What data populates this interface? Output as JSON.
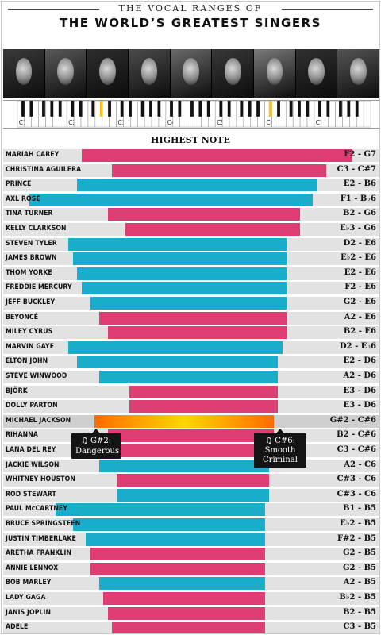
{
  "header": {
    "kicker": "THE VOCAL RANGES OF",
    "title": "THE WORLD’S GREATEST SINGERS",
    "section_label": "HIGHEST NOTE"
  },
  "colors": {
    "pink": "#de3d74",
    "teal": "#19adcb",
    "gold_start": "#ff6a00",
    "gold_mid": "#ffd700",
    "highlight_band": "#cfcfcf"
  },
  "keyboard": {
    "octave_labels": [
      "C1",
      "C2",
      "C3",
      "C4",
      "C5",
      "C6",
      "C7"
    ]
  },
  "tooltips": [
    {
      "icon": "♫",
      "note": "G#2:",
      "song": "Dangerous"
    },
    {
      "icon": "♫",
      "note": "C#6:",
      "song": "Smooth Criminal"
    }
  ],
  "chart_data": {
    "type": "bar",
    "title": "THE WORLD’S GREATEST SINGERS",
    "subtitle": "THE VOCAL RANGES OF",
    "xlabel": "HIGHEST NOTE",
    "x_axis_ticks": [
      "C1",
      "C2",
      "C3",
      "C4",
      "C5",
      "C6",
      "C7"
    ],
    "highlighted": "MICHAEL JACKSON",
    "series": [
      {
        "singer": "MARIAH CAREY",
        "range": "F2 - G7",
        "low": "F2",
        "high": "G7",
        "color": "pink"
      },
      {
        "singer": "CHRISTINA AGUILERA",
        "range": "C3 - C#7",
        "low": "C3",
        "high": "C#7",
        "color": "pink"
      },
      {
        "singer": "PRINCE",
        "range": "E2 - B6",
        "low": "E2",
        "high": "B6",
        "color": "teal"
      },
      {
        "singer": "AXL ROSE",
        "range": "F1 - B♭6",
        "low": "F1",
        "high": "B♭6",
        "color": "teal"
      },
      {
        "singer": "TINA TURNER",
        "range": "B2 - G6",
        "low": "B2",
        "high": "G6",
        "color": "pink"
      },
      {
        "singer": "KELLY CLARKSON",
        "range": "E♭3 - G6",
        "low": "E♭3",
        "high": "G6",
        "color": "pink"
      },
      {
        "singer": "STEVEN TYLER",
        "range": "D2 - E6",
        "low": "D2",
        "high": "E6",
        "color": "teal"
      },
      {
        "singer": "JAMES BROWN",
        "range": "E♭2 - E6",
        "low": "E♭2",
        "high": "E6",
        "color": "teal"
      },
      {
        "singer": "THOM YORKE",
        "range": "E2 - E6",
        "low": "E2",
        "high": "E6",
        "color": "teal"
      },
      {
        "singer": "FREDDIE MERCURY",
        "range": "F2 - E6",
        "low": "F2",
        "high": "E6",
        "color": "teal"
      },
      {
        "singer": "JEFF BUCKLEY",
        "range": "G2 - E6",
        "low": "G2",
        "high": "E6",
        "color": "teal"
      },
      {
        "singer": "BEYONCÉ",
        "range": "A2 - E6",
        "low": "A2",
        "high": "E6",
        "color": "pink"
      },
      {
        "singer": "MILEY CYRUS",
        "range": "B2 - E6",
        "low": "B2",
        "high": "E6",
        "color": "pink"
      },
      {
        "singer": "MARVIN GAYE",
        "range": "D2 - E♭6",
        "low": "D2",
        "high": "E♭6",
        "color": "teal"
      },
      {
        "singer": "ELTON JOHN",
        "range": "E2 - D6",
        "low": "E2",
        "high": "D6",
        "color": "teal"
      },
      {
        "singer": "STEVE WINWOOD",
        "range": "A2 - D6",
        "low": "A2",
        "high": "D6",
        "color": "teal"
      },
      {
        "singer": "BJÖRK",
        "range": "E3 - D6",
        "low": "E3",
        "high": "D6",
        "color": "pink"
      },
      {
        "singer": "DOLLY PARTON",
        "range": "E3 - D6",
        "low": "E3",
        "high": "D6",
        "color": "pink"
      },
      {
        "singer": "MICHAEL JACKSON",
        "range": "G#2 - C#6",
        "low": "G#2",
        "high": "C#6",
        "color": "gold"
      },
      {
        "singer": "RIHANNA",
        "range": "B2 - C#6",
        "low": "B2",
        "high": "C#6",
        "color": "pink"
      },
      {
        "singer": "LANA DEL REY",
        "range": "C3 - C#6",
        "low": "C3",
        "high": "C#6",
        "color": "pink"
      },
      {
        "singer": "JACKIE WILSON",
        "range": "A2 - C6",
        "low": "A2",
        "high": "C6",
        "color": "teal"
      },
      {
        "singer": "WHITNEY HOUSTON",
        "range": "C#3 - C6",
        "low": "C#3",
        "high": "C6",
        "color": "pink"
      },
      {
        "singer": "ROD STEWART",
        "range": "C#3 - C6",
        "low": "C#3",
        "high": "C6",
        "color": "teal"
      },
      {
        "singer": "PAUL McCARTNEY",
        "range": "B1 - B5",
        "low": "B1",
        "high": "B5",
        "color": "teal"
      },
      {
        "singer": "BRUCE SPRINGSTEEN",
        "range": "E♭2 - B5",
        "low": "E♭2",
        "high": "B5",
        "color": "teal"
      },
      {
        "singer": "JUSTIN TIMBERLAKE",
        "range": "F#2 - B5",
        "low": "F#2",
        "high": "B5",
        "color": "teal"
      },
      {
        "singer": "ARETHA FRANKLIN",
        "range": "G2 - B5",
        "low": "G2",
        "high": "B5",
        "color": "pink"
      },
      {
        "singer": "ANNIE LENNOX",
        "range": "G2 - B5",
        "low": "G2",
        "high": "B5",
        "color": "pink"
      },
      {
        "singer": "BOB MARLEY",
        "range": "A2 - B5",
        "low": "A2",
        "high": "B5",
        "color": "teal"
      },
      {
        "singer": "LADY GAGA",
        "range": "B♭2 - B5",
        "low": "B♭2",
        "high": "B5",
        "color": "pink"
      },
      {
        "singer": "JANIS JOPLIN",
        "range": "B2 - B5",
        "low": "B2",
        "high": "B5",
        "color": "pink"
      },
      {
        "singer": "ADELE",
        "range": "C3 - B5",
        "low": "C3",
        "high": "B5",
        "color": "pink"
      }
    ]
  }
}
